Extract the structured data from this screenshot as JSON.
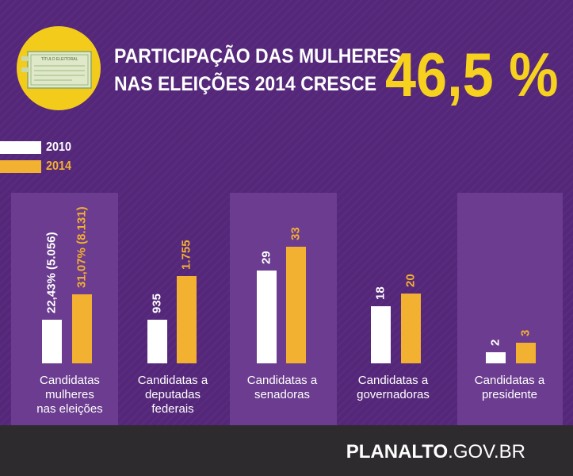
{
  "header": {
    "title_line1": "PARTICIPAÇÃO DAS MULHERES",
    "title_line2": "NAS ELEIÇÕES 2014 CRESCE",
    "headline_value": "46,5 %",
    "card_title": "TÍTULO ELEITORAL",
    "icon": "voter-card-icon"
  },
  "colors": {
    "background": "#55277a",
    "panel": "#6b3c8f",
    "bar_2010": "#ffffff",
    "bar_2014": "#f3b131",
    "headline": "#f6d21f",
    "circle": "#f2cb1b",
    "footer": "#2e2b2e"
  },
  "footer": {
    "logo_bold": "PLANALTO",
    "logo_thin": ".GOV.BR"
  },
  "chart_data": {
    "type": "bar",
    "legend": [
      "2010",
      "2014"
    ],
    "legend_position": "top-left",
    "categories": [
      "Candidatas\nmulheres\nnas eleições",
      "Candidatas a\ndeputadas\nfederais",
      "Candidatas a\nsenadoras",
      "Candidatas a\ngovernadoras",
      "Candidatas a\npresidente"
    ],
    "series": [
      {
        "name": "2010",
        "values": [
          22.43,
          935,
          29,
          18,
          2
        ],
        "labels": [
          "22,43% (5.056)",
          "935",
          "29",
          "18",
          "2"
        ],
        "pixel_heights": [
          55,
          55,
          117,
          72,
          14
        ]
      },
      {
        "name": "2014",
        "values": [
          31.07,
          1755,
          33,
          20,
          3
        ],
        "labels": [
          "31,07% (8.131)",
          "1.755",
          "33",
          "20",
          "3"
        ],
        "pixel_heights": [
          87,
          110,
          147,
          88,
          26
        ]
      }
    ]
  }
}
